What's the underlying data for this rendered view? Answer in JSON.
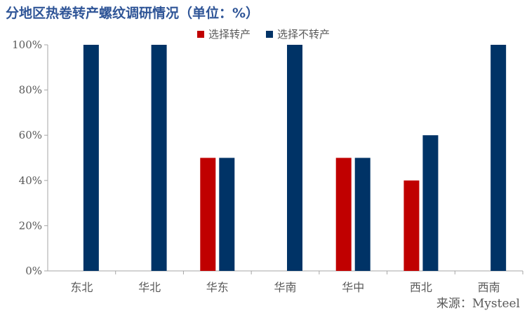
{
  "chart_data": {
    "type": "bar",
    "title": "分地区热卷转产螺纹调研情况（单位：%）",
    "categories": [
      "东北",
      "华北",
      "华东",
      "华南",
      "华中",
      "西北",
      "西南"
    ],
    "series": [
      {
        "name": "选择转产",
        "color": "#c00000",
        "values": [
          0,
          0,
          50,
          0,
          50,
          40,
          0
        ]
      },
      {
        "name": "选择不转产",
        "color": "#003366",
        "values": [
          100,
          100,
          50,
          100,
          50,
          60,
          100
        ]
      }
    ],
    "yticks": [
      "0%",
      "20%",
      "40%",
      "60%",
      "80%",
      "100%"
    ],
    "ylim": [
      0,
      100
    ],
    "legend_position": "top-center",
    "grid": false
  },
  "source": "来源：Mysteel"
}
